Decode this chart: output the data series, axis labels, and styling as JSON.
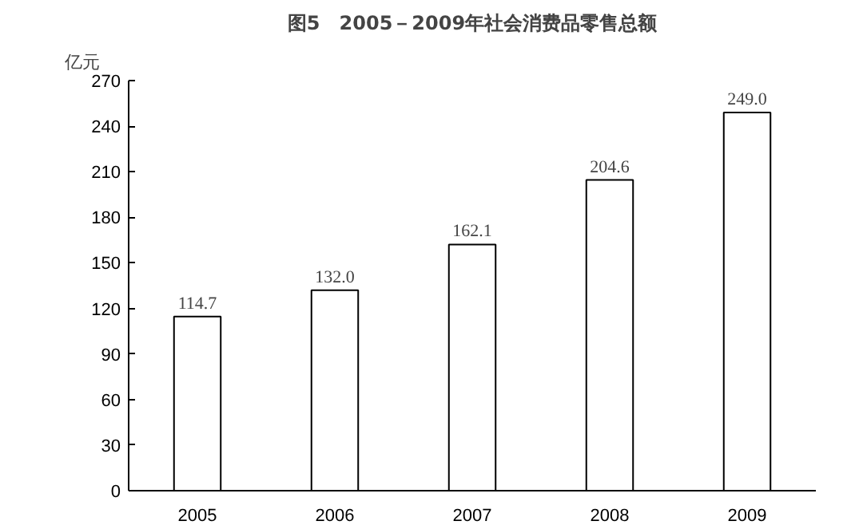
{
  "chart_data": {
    "type": "bar",
    "title": "图5　2005－2009年社会消费品零售总额",
    "ylabel": "亿元",
    "categories": [
      "2005",
      "2006",
      "2007",
      "2008",
      "2009"
    ],
    "values": [
      114.7,
      132.0,
      162.1,
      204.6,
      249.0
    ],
    "value_labels": [
      "114.7",
      "132.0",
      "162.1",
      "204.6",
      "249.0"
    ],
    "color": "#ffffff",
    "ylim": [
      0,
      270
    ],
    "yticks": [
      0,
      30,
      60,
      90,
      120,
      150,
      180,
      210,
      240,
      270
    ],
    "grid": false
  }
}
